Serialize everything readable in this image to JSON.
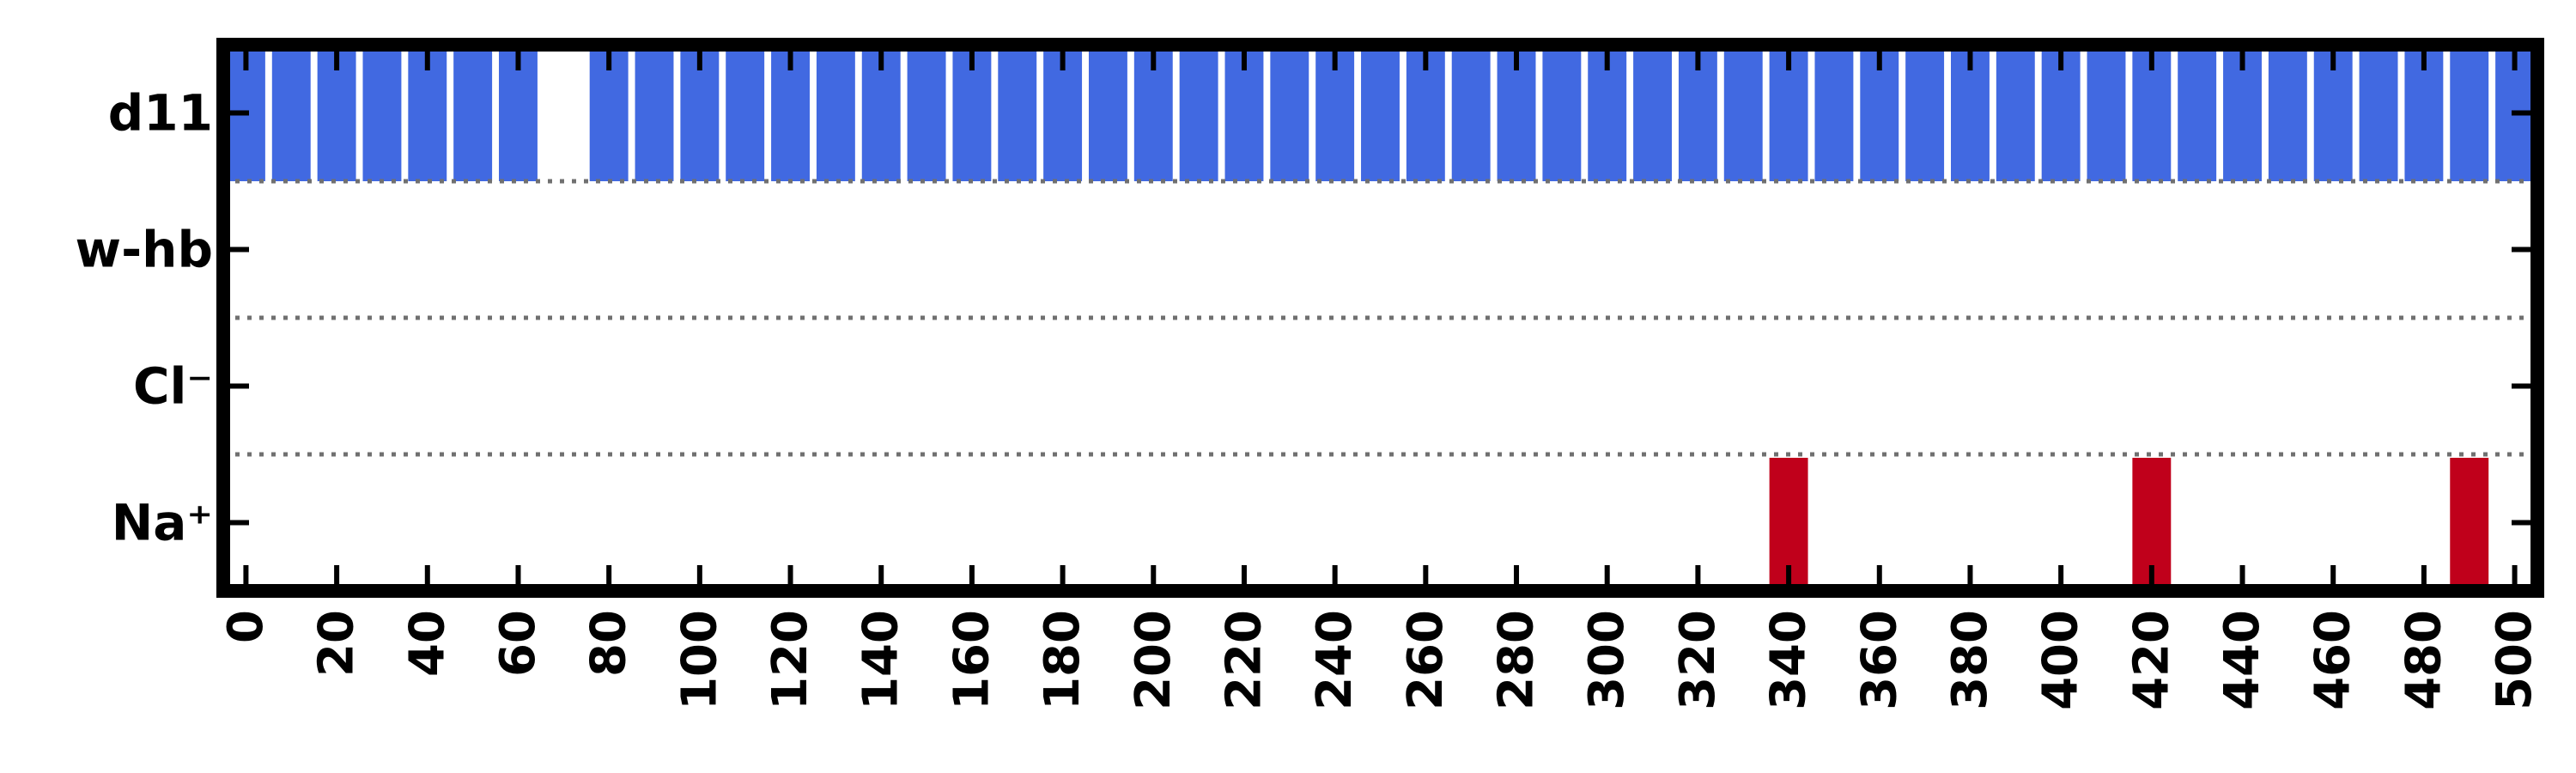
{
  "chart_data": {
    "type": "bar",
    "title": "",
    "xlabel": "",
    "ylabel": "",
    "xlim": [
      -5,
      505
    ],
    "xticks": [
      0,
      20,
      40,
      60,
      80,
      100,
      120,
      140,
      160,
      180,
      200,
      220,
      240,
      260,
      280,
      300,
      320,
      340,
      360,
      380,
      400,
      420,
      440,
      460,
      480,
      500
    ],
    "bar_width": 8.5,
    "rows": [
      {
        "label": "d11",
        "color": "#4169e1",
        "x": [
          0,
          10,
          20,
          30,
          40,
          50,
          60,
          80,
          90,
          100,
          110,
          120,
          130,
          140,
          150,
          160,
          170,
          180,
          190,
          200,
          210,
          220,
          230,
          240,
          250,
          260,
          270,
          280,
          290,
          300,
          310,
          320,
          330,
          340,
          350,
          360,
          370,
          380,
          390,
          400,
          410,
          420,
          430,
          440,
          450,
          460,
          470,
          480,
          490,
          500
        ]
      },
      {
        "label": "w-hb",
        "color": "#4169e1",
        "x": []
      },
      {
        "label": "Cl⁻",
        "color": "#4169e1",
        "x": []
      },
      {
        "label": "Na⁺",
        "color": "#c0001b",
        "x": [
          340,
          420,
          490
        ]
      }
    ],
    "row_separator": "dotted",
    "grid": false
  }
}
